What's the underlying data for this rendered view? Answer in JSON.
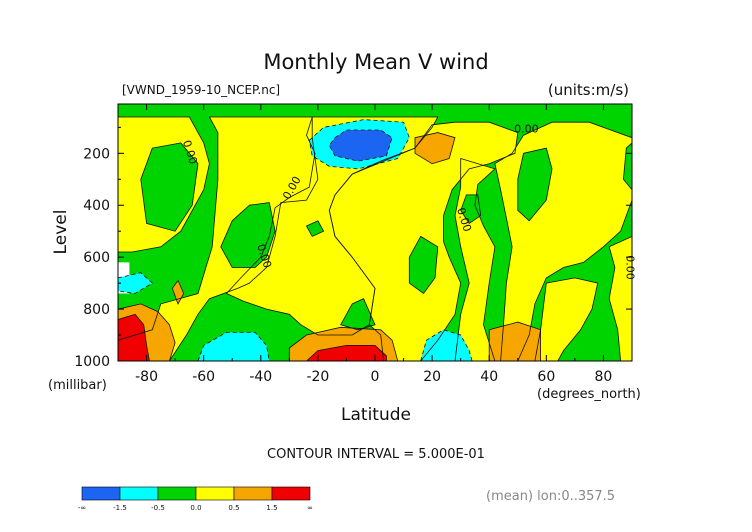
{
  "chart_data": {
    "type": "heatmap",
    "title": "Monthly Mean V wind",
    "source_label": "[VWND_1959-10_NCEP.nc]",
    "units_label": "(units:m/s)",
    "xlabel": "Latitude",
    "x_unit_label": "(degrees_north)",
    "ylabel": "Level",
    "y_unit_label": "(millibar)",
    "x_ticks": [
      -80,
      -60,
      -40,
      -20,
      0,
      20,
      40,
      60,
      80
    ],
    "y_ticks": [
      200,
      400,
      600,
      800,
      1000
    ],
    "xlim": [
      -90,
      90
    ],
    "ylim": [
      1000,
      10
    ],
    "contour_interval_text": "CONTOUR INTERVAL = 5.000E-01",
    "mean_note": "(mean) lon:0..357.5",
    "contour_labels": [
      "0.00",
      "0.00",
      "0.00",
      "0.00",
      "0.00",
      "0.00"
    ],
    "colorbar": {
      "labels": [
        "-∞",
        "-1.5",
        "-0.5",
        "0.0",
        "0.5",
        "1.5",
        "∞"
      ],
      "colors": [
        "#1c64f2",
        "#00ffff",
        "#00d400",
        "#ffff00",
        "#f7a600",
        "#f00000"
      ],
      "bin_bounds": [
        -1.5,
        -0.5,
        0.0,
        0.5,
        1.5
      ]
    },
    "regions": [
      {
        "level": "green",
        "outline": [
          [
            -90,
            10
          ],
          [
            90,
            10
          ],
          [
            90,
            1000
          ],
          [
            -90,
            1000
          ]
        ]
      },
      {
        "level": "yellow",
        "outline": [
          [
            -90,
            60
          ],
          [
            -65,
            60
          ],
          [
            -62,
            120
          ],
          [
            -60,
            160
          ],
          [
            -58,
            240
          ],
          [
            -60,
            340
          ],
          [
            -68,
            500
          ],
          [
            -75,
            560
          ],
          [
            -85,
            580
          ],
          [
            -90,
            580
          ]
        ]
      },
      {
        "level": "yellow",
        "outline": [
          [
            -58,
            60
          ],
          [
            -22,
            60
          ],
          [
            -22,
            140
          ],
          [
            -20,
            300
          ],
          [
            -24,
            380
          ],
          [
            -33,
            390
          ],
          [
            -35,
            520
          ],
          [
            -38,
            640
          ],
          [
            -44,
            700
          ],
          [
            -48,
            720
          ],
          [
            -58,
            760
          ],
          [
            -62,
            820
          ],
          [
            -66,
            900
          ],
          [
            -72,
            1000
          ],
          [
            -90,
            1000
          ],
          [
            -90,
            920
          ],
          [
            -78,
            880
          ],
          [
            -75,
            780
          ],
          [
            -62,
            740
          ],
          [
            -57,
            560
          ],
          [
            -55,
            300
          ],
          [
            -55,
            120
          ]
        ]
      },
      {
        "level": "yellow",
        "outline": [
          [
            -22,
            60
          ],
          [
            22,
            60
          ],
          [
            20,
            100
          ],
          [
            14,
            180
          ],
          [
            2,
            230
          ],
          [
            -8,
            280
          ],
          [
            -14,
            360
          ],
          [
            -16,
            420
          ],
          [
            -14,
            520
          ],
          [
            -8,
            600
          ],
          [
            -4,
            660
          ],
          [
            0,
            720
          ],
          [
            -2,
            860
          ],
          [
            -8,
            900
          ],
          [
            -20,
            900
          ],
          [
            -26,
            860
          ],
          [
            -30,
            820
          ],
          [
            -38,
            800
          ],
          [
            -46,
            770
          ],
          [
            -52,
            740
          ],
          [
            -47,
            680
          ],
          [
            -40,
            600
          ],
          [
            -37,
            520
          ],
          [
            -35,
            410
          ],
          [
            -30,
            370
          ],
          [
            -23,
            330
          ],
          [
            -21,
            200
          ],
          [
            -24,
            130
          ]
        ]
      },
      {
        "level": "yellow",
        "outline": [
          [
            -8,
            280
          ],
          [
            14,
            180
          ],
          [
            20,
            90
          ],
          [
            28,
            80
          ],
          [
            40,
            80
          ],
          [
            50,
            120
          ],
          [
            49,
            200
          ],
          [
            40,
            240
          ],
          [
            33,
            260
          ],
          [
            27,
            340
          ],
          [
            24,
            440
          ],
          [
            24,
            540
          ],
          [
            26,
            600
          ],
          [
            30,
            700
          ],
          [
            28,
            820
          ],
          [
            22,
            920
          ],
          [
            16,
            1000
          ],
          [
            3,
            1000
          ],
          [
            2,
            900
          ],
          [
            -2,
            860
          ],
          [
            0,
            720
          ],
          [
            -4,
            660
          ],
          [
            -8,
            600
          ],
          [
            -14,
            520
          ],
          [
            -16,
            420
          ],
          [
            -14,
            360
          ]
        ]
      },
      {
        "level": "yellow",
        "outline": [
          [
            30,
            220
          ],
          [
            42,
            260
          ],
          [
            36,
            320
          ],
          [
            35,
            400
          ],
          [
            38,
            480
          ],
          [
            42,
            560
          ],
          [
            40,
            700
          ],
          [
            38,
            860
          ],
          [
            42,
            1000
          ],
          [
            28,
            1000
          ],
          [
            30,
            820
          ],
          [
            33,
            700
          ],
          [
            30,
            560
          ],
          [
            28,
            440
          ],
          [
            30,
            330
          ]
        ]
      },
      {
        "level": "yellow",
        "outline": [
          [
            42,
            240
          ],
          [
            48,
            200
          ],
          [
            52,
            130
          ],
          [
            62,
            80
          ],
          [
            75,
            80
          ],
          [
            80,
            100
          ],
          [
            90,
            140
          ],
          [
            90,
            380
          ],
          [
            86,
            500
          ],
          [
            80,
            560
          ],
          [
            73,
            620
          ],
          [
            66,
            640
          ],
          [
            60,
            680
          ],
          [
            56,
            780
          ],
          [
            54,
            900
          ],
          [
            50,
            1000
          ],
          [
            44,
            1000
          ],
          [
            45,
            860
          ],
          [
            46,
            700
          ],
          [
            48,
            560
          ],
          [
            46,
            450
          ],
          [
            44,
            340
          ]
        ]
      },
      {
        "level": "yellow",
        "outline": [
          [
            60,
            700
          ],
          [
            70,
            680
          ],
          [
            78,
            700
          ],
          [
            76,
            800
          ],
          [
            72,
            880
          ],
          [
            66,
            960
          ],
          [
            64,
            1000
          ],
          [
            56,
            1000
          ],
          [
            58,
            880
          ]
        ]
      },
      {
        "level": "yellow",
        "outline": [
          [
            82,
            560
          ],
          [
            90,
            520
          ],
          [
            90,
            1000
          ],
          [
            86,
            1000
          ],
          [
            85,
            880
          ],
          [
            82,
            760
          ],
          [
            84,
            640
          ]
        ]
      },
      {
        "level": "green",
        "outline": [
          [
            -78,
            180
          ],
          [
            -68,
            160
          ],
          [
            -62,
            240
          ],
          [
            -64,
            400
          ],
          [
            -70,
            500
          ],
          [
            -80,
            470
          ],
          [
            -82,
            300
          ]
        ]
      },
      {
        "level": "green",
        "outline": [
          [
            52,
            200
          ],
          [
            60,
            180
          ],
          [
            62,
            260
          ],
          [
            60,
            380
          ],
          [
            54,
            460
          ],
          [
            50,
            420
          ],
          [
            50,
            300
          ]
        ]
      },
      {
        "level": "green",
        "outline": [
          [
            -44,
            400
          ],
          [
            -37,
            390
          ],
          [
            -35,
            500
          ],
          [
            -38,
            600
          ],
          [
            -42,
            640
          ],
          [
            -50,
            640
          ],
          [
            -54,
            560
          ],
          [
            -50,
            460
          ]
        ]
      },
      {
        "level": "green",
        "outline": [
          [
            16,
            520
          ],
          [
            22,
            560
          ],
          [
            21,
            680
          ],
          [
            17,
            740
          ],
          [
            12,
            700
          ],
          [
            12,
            600
          ]
        ]
      },
      {
        "level": "green",
        "outline": [
          [
            -24,
            480
          ],
          [
            -20,
            460
          ],
          [
            -18,
            500
          ],
          [
            -22,
            520
          ]
        ]
      },
      {
        "level": "green",
        "outline": [
          [
            -8,
            780
          ],
          [
            -4,
            760
          ],
          [
            0,
            860
          ],
          [
            -6,
            880
          ],
          [
            -12,
            860
          ]
        ]
      },
      {
        "level": "green",
        "outline": [
          [
            32,
            360
          ],
          [
            36,
            360
          ],
          [
            37,
            440
          ],
          [
            33,
            470
          ],
          [
            30,
            420
          ]
        ]
      },
      {
        "level": "green",
        "outline": [
          [
            88,
            180
          ],
          [
            90,
            160
          ],
          [
            90,
            340
          ],
          [
            87,
            300
          ]
        ]
      },
      {
        "level": "orange",
        "outline": [
          [
            14,
            140
          ],
          [
            22,
            120
          ],
          [
            28,
            140
          ],
          [
            26,
            220
          ],
          [
            20,
            240
          ],
          [
            14,
            200
          ]
        ]
      },
      {
        "level": "orange",
        "outline": [
          [
            40,
            880
          ],
          [
            50,
            850
          ],
          [
            58,
            880
          ],
          [
            58,
            1000
          ],
          [
            40,
            1000
          ]
        ]
      },
      {
        "level": "orange",
        "outline": [
          [
            -30,
            950
          ],
          [
            -24,
            900
          ],
          [
            -12,
            870
          ],
          [
            2,
            880
          ],
          [
            6,
            920
          ],
          [
            8,
            1000
          ],
          [
            -30,
            1000
          ]
        ]
      },
      {
        "level": "red",
        "outline": [
          [
            -24,
            1000
          ],
          [
            -20,
            960
          ],
          [
            -10,
            940
          ],
          [
            0,
            940
          ],
          [
            4,
            980
          ],
          [
            4,
            1000
          ]
        ]
      },
      {
        "level": "orange",
        "outline": [
          [
            -90,
            800
          ],
          [
            -82,
            780
          ],
          [
            -76,
            810
          ],
          [
            -72,
            860
          ],
          [
            -70,
            930
          ],
          [
            -72,
            1000
          ],
          [
            -90,
            1000
          ]
        ]
      },
      {
        "level": "red",
        "outline": [
          [
            -90,
            840
          ],
          [
            -84,
            820
          ],
          [
            -81,
            860
          ],
          [
            -80,
            940
          ],
          [
            -79,
            1000
          ],
          [
            -90,
            1000
          ]
        ]
      },
      {
        "level": "orange",
        "outline": [
          [
            -71,
            720
          ],
          [
            -69,
            690
          ],
          [
            -67,
            740
          ],
          [
            -69,
            780
          ]
        ]
      },
      {
        "level": "white",
        "outline": [
          [
            -90,
            620
          ],
          [
            -86,
            620
          ],
          [
            -86,
            740
          ],
          [
            -90,
            740
          ]
        ]
      },
      {
        "level": "cyan",
        "outline": [
          [
            -90,
            680
          ],
          [
            -82,
            660
          ],
          [
            -78,
            700
          ],
          [
            -84,
            740
          ],
          [
            -90,
            730
          ]
        ]
      },
      {
        "level": "cyan",
        "outline": [
          [
            -23,
            150
          ],
          [
            -18,
            100
          ],
          [
            -4,
            70
          ],
          [
            10,
            80
          ],
          [
            12,
            140
          ],
          [
            8,
            220
          ],
          [
            -6,
            260
          ],
          [
            -16,
            250
          ],
          [
            -22,
            210
          ]
        ]
      },
      {
        "level": "blue",
        "outline": [
          [
            -14,
            140
          ],
          [
            -10,
            110
          ],
          [
            2,
            110
          ],
          [
            6,
            140
          ],
          [
            4,
            210
          ],
          [
            -6,
            230
          ],
          [
            -14,
            210
          ],
          [
            -16,
            170
          ]
        ]
      },
      {
        "level": "cyan",
        "outline": [
          [
            -62,
            1000
          ],
          [
            -60,
            940
          ],
          [
            -52,
            890
          ],
          [
            -42,
            890
          ],
          [
            -38,
            940
          ],
          [
            -37,
            1000
          ]
        ]
      },
      {
        "level": "cyan",
        "outline": [
          [
            16,
            1000
          ],
          [
            18,
            920
          ],
          [
            24,
            880
          ],
          [
            30,
            900
          ],
          [
            33,
            960
          ],
          [
            34,
            1000
          ]
        ]
      }
    ]
  }
}
